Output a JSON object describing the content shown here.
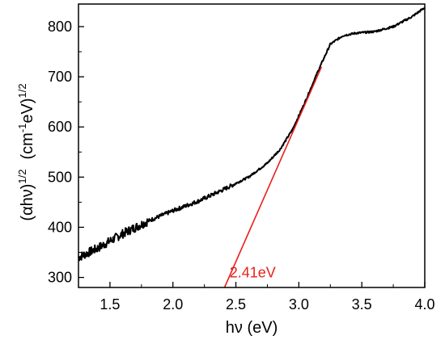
{
  "chart_data": {
    "type": "line",
    "xlabel": "hν (eV)",
    "ylabel": {
      "part1": "(αhν)",
      "sup1": "1/2",
      "part2": "(cm",
      "sup2": "-1",
      "part3": "eV)",
      "sup3": "1/2"
    },
    "xlim": [
      1.25,
      4.0
    ],
    "ylim": [
      280,
      845
    ],
    "x_ticks": [
      1.5,
      2.0,
      2.5,
      3.0,
      3.5,
      4.0
    ],
    "x_tick_labels": [
      "1.5",
      "2.0",
      "2.5",
      "3.0",
      "3.5",
      "4.0"
    ],
    "y_ticks": [
      300,
      400,
      500,
      600,
      700,
      800
    ],
    "y_tick_labels": [
      "300",
      "400",
      "500",
      "600",
      "700",
      "800"
    ],
    "grid": false,
    "series": [
      {
        "color": "#000000",
        "noisy": true,
        "x": [
          1.25,
          1.4,
          1.6,
          1.8,
          2.0,
          2.2,
          2.4,
          2.6,
          2.75,
          2.85,
          2.95,
          3.05,
          3.15,
          3.25,
          3.35,
          3.45,
          3.6,
          3.75,
          3.9,
          4.0
        ],
        "y": [
          340,
          358,
          387,
          412,
          433,
          452,
          475,
          500,
          528,
          555,
          595,
          650,
          710,
          765,
          782,
          787,
          790,
          800,
          820,
          838
        ]
      },
      {
        "color": "#e8201a",
        "noisy": false,
        "x": [
          2.41,
          3.18
        ],
        "y": [
          280,
          720
        ]
      }
    ],
    "annotations": [
      {
        "text": "2.41eV",
        "x": 2.45,
        "y": 300,
        "color": "#e8201a"
      }
    ]
  }
}
